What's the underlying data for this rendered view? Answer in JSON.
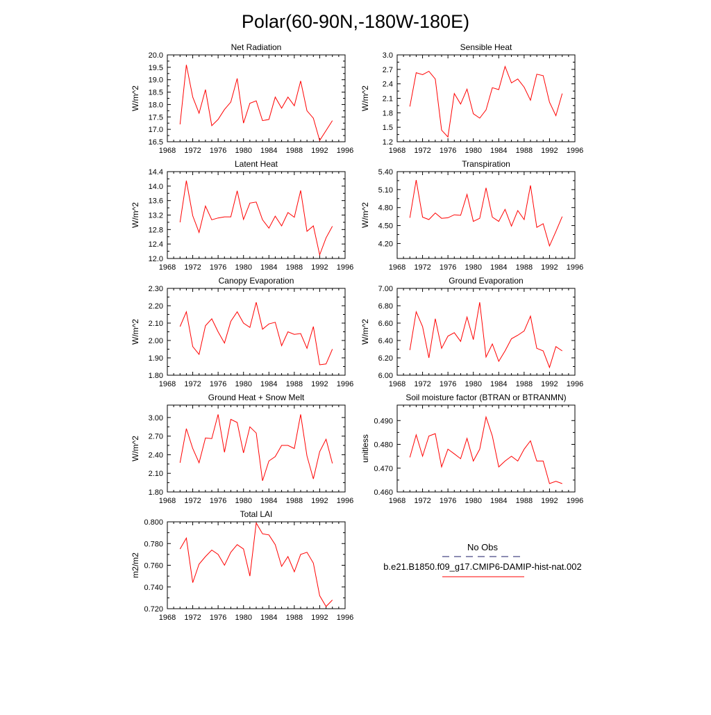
{
  "figure": {
    "title": "Polar(60-90N,-180W-180E)"
  },
  "chart_data": [
    {
      "type": "line",
      "title": "Net Radiation",
      "ylabel": "W/m^2",
      "xlim": [
        1968,
        1996
      ],
      "ylim": [
        16.5,
        20.0
      ],
      "yticks": [
        16.5,
        17.0,
        17.5,
        18.0,
        18.5,
        19.0,
        19.5,
        20.0
      ],
      "ytick_labels": [
        "16.5",
        "17.0",
        "17.5",
        "18.0",
        "18.5",
        "19.0",
        "19.5",
        "20.0"
      ],
      "xticks": [
        1968,
        1972,
        1976,
        1980,
        1984,
        1988,
        1992,
        1996
      ],
      "xtick_labels": [
        "1968",
        "1972",
        "1976",
        "1980",
        "1984",
        "1988",
        "1992",
        "1996"
      ],
      "x": [
        1970,
        1971,
        1972,
        1973,
        1974,
        1975,
        1976,
        1977,
        1978,
        1979,
        1980,
        1981,
        1982,
        1983,
        1984,
        1985,
        1986,
        1987,
        1988,
        1989,
        1990,
        1991,
        1992,
        1993,
        1994
      ],
      "series": [
        {
          "values": [
            17.2,
            19.6,
            18.3,
            17.65,
            18.6,
            17.15,
            17.4,
            17.8,
            18.1,
            19.05,
            17.25,
            18.05,
            18.15,
            17.35,
            17.4,
            18.3,
            17.85,
            18.3,
            17.95,
            18.95,
            17.75,
            17.45,
            16.55,
            16.95,
            17.35
          ]
        }
      ]
    },
    {
      "type": "line",
      "title": "Sensible Heat",
      "ylabel": "W/m^2",
      "xlim": [
        1968,
        1996
      ],
      "ylim": [
        1.2,
        3.0
      ],
      "yticks": [
        1.2,
        1.5,
        1.8,
        2.1,
        2.4,
        2.7,
        3.0
      ],
      "ytick_labels": [
        "1.2",
        "1.5",
        "1.8",
        "2.1",
        "2.4",
        "2.7",
        "3.0"
      ],
      "xticks": [
        1968,
        1972,
        1976,
        1980,
        1984,
        1988,
        1992,
        1996
      ],
      "xtick_labels": [
        "1968",
        "1972",
        "1976",
        "1980",
        "1984",
        "1988",
        "1992",
        "1996"
      ],
      "x": [
        1970,
        1971,
        1972,
        1973,
        1974,
        1975,
        1976,
        1977,
        1978,
        1979,
        1980,
        1981,
        1982,
        1983,
        1984,
        1985,
        1986,
        1987,
        1988,
        1989,
        1990,
        1991,
        1992,
        1993,
        1994
      ],
      "series": [
        {
          "values": [
            1.93,
            2.63,
            2.59,
            2.66,
            2.5,
            1.44,
            1.3,
            2.2,
            1.98,
            2.29,
            1.78,
            1.69,
            1.86,
            2.32,
            2.28,
            2.76,
            2.42,
            2.5,
            2.33,
            2.06,
            2.6,
            2.57,
            2.02,
            1.74,
            2.2
          ]
        }
      ]
    },
    {
      "type": "line",
      "title": "Latent Heat",
      "ylabel": "W/m^2",
      "xlim": [
        1968,
        1996
      ],
      "ylim": [
        12.0,
        14.4
      ],
      "yticks": [
        12.0,
        12.4,
        12.8,
        13.2,
        13.6,
        14.0,
        14.4
      ],
      "ytick_labels": [
        "12.0",
        "12.4",
        "12.8",
        "13.2",
        "13.6",
        "14.0",
        "14.4"
      ],
      "xticks": [
        1968,
        1972,
        1976,
        1980,
        1984,
        1988,
        1992,
        1996
      ],
      "xtick_labels": [
        "1968",
        "1972",
        "1976",
        "1980",
        "1984",
        "1988",
        "1992",
        "1996"
      ],
      "x": [
        1970,
        1971,
        1972,
        1973,
        1974,
        1975,
        1976,
        1977,
        1978,
        1979,
        1980,
        1981,
        1982,
        1983,
        1984,
        1985,
        1986,
        1987,
        1988,
        1989,
        1990,
        1991,
        1992,
        1993,
        1994
      ],
      "series": [
        {
          "values": [
            13.0,
            14.15,
            13.18,
            12.72,
            13.45,
            13.07,
            13.12,
            13.15,
            13.15,
            13.87,
            13.08,
            13.53,
            13.56,
            13.07,
            12.84,
            13.17,
            12.9,
            13.27,
            13.14,
            13.88,
            12.75,
            12.9,
            12.1,
            12.57,
            12.89
          ]
        }
      ]
    },
    {
      "type": "line",
      "title": "Transpiration",
      "ylabel": "W/m^2",
      "xlim": [
        1968,
        1996
      ],
      "ylim": [
        3.95,
        5.4
      ],
      "yticks": [
        4.2,
        4.5,
        4.8,
        5.1,
        5.4
      ],
      "ytick_labels": [
        "4.20",
        "4.50",
        "4.80",
        "5.10",
        "5.40"
      ],
      "xticks": [
        1968,
        1972,
        1976,
        1980,
        1984,
        1988,
        1992,
        1996
      ],
      "xtick_labels": [
        "1968",
        "1972",
        "1976",
        "1980",
        "1984",
        "1988",
        "1992",
        "1996"
      ],
      "x": [
        1970,
        1971,
        1972,
        1973,
        1974,
        1975,
        1976,
        1977,
        1978,
        1979,
        1980,
        1981,
        1982,
        1983,
        1984,
        1985,
        1986,
        1987,
        1988,
        1989,
        1990,
        1991,
        1992,
        1993,
        1994
      ],
      "series": [
        {
          "values": [
            4.63,
            5.26,
            4.64,
            4.6,
            4.71,
            4.62,
            4.63,
            4.68,
            4.67,
            5.02,
            4.57,
            4.62,
            5.13,
            4.64,
            4.57,
            4.77,
            4.49,
            4.75,
            4.6,
            5.17,
            4.47,
            4.53,
            4.16,
            4.4,
            4.65
          ]
        }
      ]
    },
    {
      "type": "line",
      "title": "Canopy Evaporation",
      "ylabel": "W/m^2",
      "xlim": [
        1968,
        1996
      ],
      "ylim": [
        1.8,
        2.3
      ],
      "yticks": [
        1.8,
        1.9,
        2.0,
        2.1,
        2.2,
        2.3
      ],
      "ytick_labels": [
        "1.80",
        "1.90",
        "2.00",
        "2.10",
        "2.20",
        "2.30"
      ],
      "xticks": [
        1968,
        1972,
        1976,
        1980,
        1984,
        1988,
        1992,
        1996
      ],
      "xtick_labels": [
        "1968",
        "1972",
        "1976",
        "1980",
        "1984",
        "1988",
        "1992",
        "1996"
      ],
      "x": [
        1970,
        1971,
        1972,
        1973,
        1974,
        1975,
        1976,
        1977,
        1978,
        1979,
        1980,
        1981,
        1982,
        1983,
        1984,
        1985,
        1986,
        1987,
        1988,
        1989,
        1990,
        1991,
        1992,
        1993,
        1994
      ],
      "series": [
        {
          "values": [
            2.08,
            2.165,
            1.965,
            1.92,
            2.085,
            2.125,
            2.05,
            1.985,
            2.11,
            2.165,
            2.1,
            2.075,
            2.22,
            2.065,
            2.095,
            2.105,
            1.97,
            2.05,
            2.035,
            2.04,
            1.955,
            2.08,
            1.86,
            1.865,
            1.95
          ]
        }
      ]
    },
    {
      "type": "line",
      "title": "Ground Evaporation",
      "ylabel": "W/m^2",
      "xlim": [
        1968,
        1996
      ],
      "ylim": [
        6.0,
        7.0
      ],
      "yticks": [
        6.0,
        6.2,
        6.4,
        6.6,
        6.8,
        7.0
      ],
      "ytick_labels": [
        "6.00",
        "6.20",
        "6.40",
        "6.60",
        "6.80",
        "7.00"
      ],
      "xticks": [
        1968,
        1972,
        1976,
        1980,
        1984,
        1988,
        1992,
        1996
      ],
      "xtick_labels": [
        "1968",
        "1972",
        "1976",
        "1980",
        "1984",
        "1988",
        "1992",
        "1996"
      ],
      "x": [
        1970,
        1971,
        1972,
        1973,
        1974,
        1975,
        1976,
        1977,
        1978,
        1979,
        1980,
        1981,
        1982,
        1983,
        1984,
        1985,
        1986,
        1987,
        1988,
        1989,
        1990,
        1991,
        1992,
        1993,
        1994
      ],
      "series": [
        {
          "values": [
            6.29,
            6.73,
            6.56,
            6.2,
            6.65,
            6.31,
            6.45,
            6.49,
            6.39,
            6.67,
            6.41,
            6.84,
            6.21,
            6.36,
            6.16,
            6.28,
            6.42,
            6.46,
            6.51,
            6.68,
            6.31,
            6.28,
            6.09,
            6.33,
            6.28
          ]
        }
      ]
    },
    {
      "type": "line",
      "title": "Ground Heat + Snow Melt",
      "ylabel": "W/m^2",
      "xlim": [
        1968,
        1996
      ],
      "ylim": [
        1.8,
        3.2
      ],
      "yticks": [
        1.8,
        2.1,
        2.4,
        2.7,
        3.0
      ],
      "ytick_labels": [
        "1.80",
        "2.10",
        "2.40",
        "2.70",
        "3.00"
      ],
      "xticks": [
        1968,
        1972,
        1976,
        1980,
        1984,
        1988,
        1992,
        1996
      ],
      "xtick_labels": [
        "1968",
        "1972",
        "1976",
        "1980",
        "1984",
        "1988",
        "1992",
        "1996"
      ],
      "x": [
        1970,
        1971,
        1972,
        1973,
        1974,
        1975,
        1976,
        1977,
        1978,
        1979,
        1980,
        1981,
        1982,
        1983,
        1984,
        1985,
        1986,
        1987,
        1988,
        1989,
        1990,
        1991,
        1992,
        1993,
        1994
      ],
      "series": [
        {
          "values": [
            2.27,
            2.82,
            2.5,
            2.27,
            2.67,
            2.66,
            3.05,
            2.44,
            2.97,
            2.92,
            2.43,
            2.85,
            2.75,
            1.98,
            2.3,
            2.37,
            2.55,
            2.55,
            2.5,
            3.05,
            2.38,
            2.01,
            2.45,
            2.65,
            2.26
          ]
        }
      ]
    },
    {
      "type": "line",
      "title": "Soil moisture factor (BTRAN or BTRANMN)",
      "ylabel": "unitless",
      "xlim": [
        1968,
        1996
      ],
      "ylim": [
        0.46,
        0.4965
      ],
      "yticks": [
        0.46,
        0.47,
        0.48,
        0.49
      ],
      "ytick_labels": [
        "0.460",
        "0.470",
        "0.480",
        "0.490"
      ],
      "xticks": [
        1968,
        1972,
        1976,
        1980,
        1984,
        1988,
        1992,
        1996
      ],
      "xtick_labels": [
        "1968",
        "1972",
        "1976",
        "1980",
        "1984",
        "1988",
        "1992",
        "1996"
      ],
      "x": [
        1970,
        1971,
        1972,
        1973,
        1974,
        1975,
        1976,
        1977,
        1978,
        1979,
        1980,
        1981,
        1982,
        1983,
        1984,
        1985,
        1986,
        1987,
        1988,
        1989,
        1990,
        1991,
        1992,
        1993,
        1994
      ],
      "series": [
        {
          "values": [
            0.4745,
            0.484,
            0.475,
            0.4835,
            0.4845,
            0.4705,
            0.478,
            0.476,
            0.474,
            0.4825,
            0.473,
            0.478,
            0.4915,
            0.4835,
            0.4705,
            0.473,
            0.475,
            0.473,
            0.478,
            0.4815,
            0.473,
            0.473,
            0.4635,
            0.4645,
            0.4635
          ]
        }
      ]
    },
    {
      "type": "line",
      "title": "Total LAI",
      "ylabel": "m2/m2",
      "xlim": [
        1968,
        1996
      ],
      "ylim": [
        0.72,
        0.8
      ],
      "yticks": [
        0.72,
        0.74,
        0.76,
        0.78,
        0.8
      ],
      "ytick_labels": [
        "0.720",
        "0.740",
        "0.760",
        "0.780",
        "0.800"
      ],
      "xticks": [
        1968,
        1972,
        1976,
        1980,
        1984,
        1988,
        1992,
        1996
      ],
      "xtick_labels": [
        "1968",
        "1972",
        "1976",
        "1980",
        "1984",
        "1988",
        "1992",
        "1996"
      ],
      "x": [
        1970,
        1971,
        1972,
        1973,
        1974,
        1975,
        1976,
        1977,
        1978,
        1979,
        1980,
        1981,
        1982,
        1983,
        1984,
        1985,
        1986,
        1987,
        1988,
        1989,
        1990,
        1991,
        1992,
        1993,
        1994
      ],
      "series": [
        {
          "values": [
            0.775,
            0.785,
            0.744,
            0.761,
            0.768,
            0.774,
            0.77,
            0.76,
            0.772,
            0.779,
            0.775,
            0.75,
            0.799,
            0.789,
            0.788,
            0.779,
            0.759,
            0.768,
            0.754,
            0.77,
            0.772,
            0.762,
            0.732,
            0.722,
            0.728
          ]
        }
      ]
    }
  ],
  "legend": {
    "obs_label": "No Obs",
    "model_label": "b.e21.B1850.f09_g17.CMIP6-DAMIP-hist-nat.002",
    "obs_color": "#1a1a66",
    "model_color": "#ff0000"
  },
  "colors": {
    "series": "#ff0000",
    "axes": "#000000"
  }
}
